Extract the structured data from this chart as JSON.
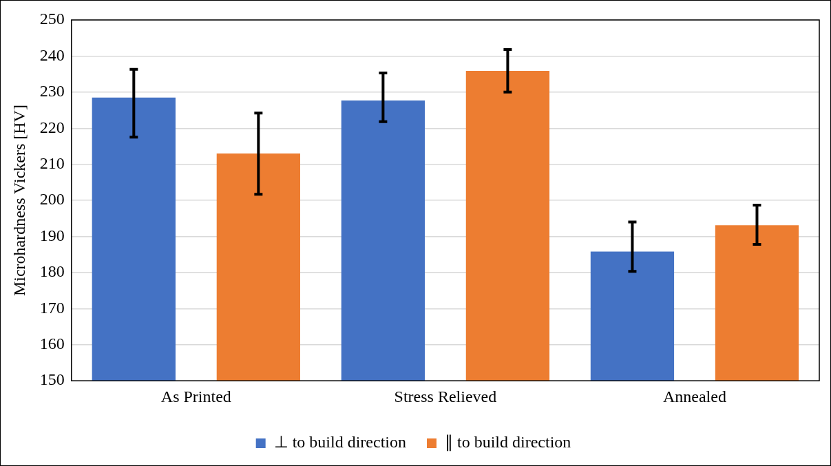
{
  "chart_data": {
    "type": "bar",
    "ylabel": "Microhardness Vickers [HV]",
    "categories": [
      "As Printed",
      "Stress Relieved",
      "Annealed"
    ],
    "series": [
      {
        "name": "⊥ to build direction",
        "color": "#4472c4",
        "values": [
          228.5,
          227.7,
          185.8
        ],
        "errors": [
          [
            217.5,
            236.3
          ],
          [
            221.8,
            235.3
          ],
          [
            180.3,
            194
          ]
        ]
      },
      {
        "name": "∥ to build direction",
        "color": "#ed7d31",
        "values": [
          213,
          235.9,
          193.1
        ],
        "errors": [
          [
            201.7,
            224.2
          ],
          [
            230,
            241.8
          ],
          [
            187.8,
            198.7
          ]
        ]
      }
    ],
    "ylim": [
      150,
      250
    ],
    "yticks": [
      150,
      160,
      170,
      180,
      190,
      200,
      210,
      220,
      230,
      240,
      250
    ],
    "grid": "y",
    "legend": "bottom"
  }
}
